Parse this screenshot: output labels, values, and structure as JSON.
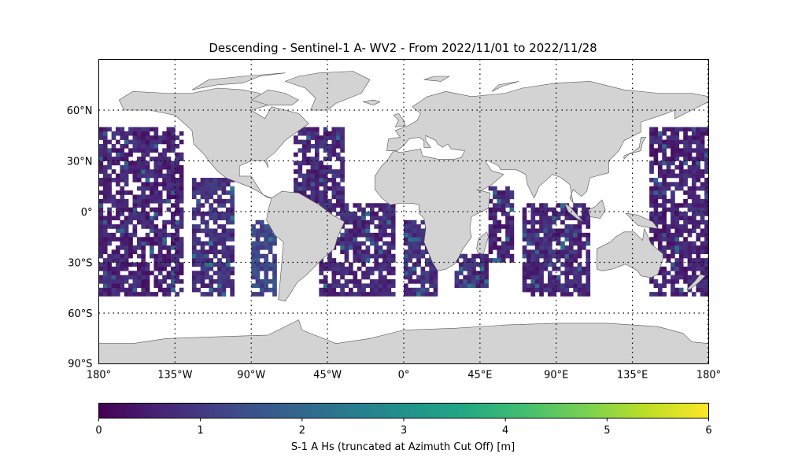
{
  "title": "Descending - Sentinel-1 A- WV2 - From 2022/11/01 to 2022/11/28",
  "lat_ticks": [
    "60°N",
    "30°N",
    "0°",
    "30°S",
    "60°S",
    "90°S"
  ],
  "lat_tick_values": [
    60,
    30,
    0,
    -30,
    -60,
    -90
  ],
  "lon_ticks": [
    "180°",
    "135°W",
    "90°W",
    "45°W",
    "0°",
    "45°E",
    "90°E",
    "135°E",
    "180°"
  ],
  "lon_tick_values": [
    -180,
    -135,
    -90,
    -45,
    0,
    45,
    90,
    135,
    180
  ],
  "map_extent": {
    "lon": [
      -180,
      180
    ],
    "lat": [
      -90,
      90
    ]
  },
  "colorbar": {
    "label": "S-1 A Hs (truncated at Azimuth Cut Off) [m]",
    "ticks": [
      "0",
      "1",
      "2",
      "3",
      "4",
      "5",
      "6"
    ],
    "range": [
      0,
      6
    ],
    "colormap": "viridis"
  },
  "colors": {
    "land": "#d3d3d3",
    "coastline": "#555555",
    "grid": "#000000"
  },
  "data_coverage": {
    "description_note": "",
    "swaths": [
      {
        "lon": [
          -180,
          -130
        ],
        "lat": [
          -50,
          50
        ],
        "typical_value": 0.6
      },
      {
        "lon": [
          -125,
          -100
        ],
        "lat": [
          -50,
          20
        ],
        "typical_value": 0.8
      },
      {
        "lon": [
          -90,
          -77
        ],
        "lat": [
          -50,
          -5
        ],
        "typical_value": 1.3
      },
      {
        "lon": [
          -65,
          -35
        ],
        "lat": [
          0,
          50
        ],
        "typical_value": 0.7
      },
      {
        "lon": [
          -50,
          -5
        ],
        "lat": [
          -50,
          5
        ],
        "typical_value": 0.7
      },
      {
        "lon": [
          0,
          20
        ],
        "lat": [
          -50,
          -5
        ],
        "typical_value": 0.8
      },
      {
        "lon": [
          30,
          50
        ],
        "lat": [
          -45,
          -25
        ],
        "typical_value": 0.8
      },
      {
        "lon": [
          50,
          65
        ],
        "lat": [
          -30,
          15
        ],
        "typical_value": 0.6
      },
      {
        "lon": [
          70,
          110
        ],
        "lat": [
          -50,
          5
        ],
        "typical_value": 0.7
      },
      {
        "lon": [
          145,
          180
        ],
        "lat": [
          -50,
          50
        ],
        "typical_value": 0.6
      }
    ]
  }
}
